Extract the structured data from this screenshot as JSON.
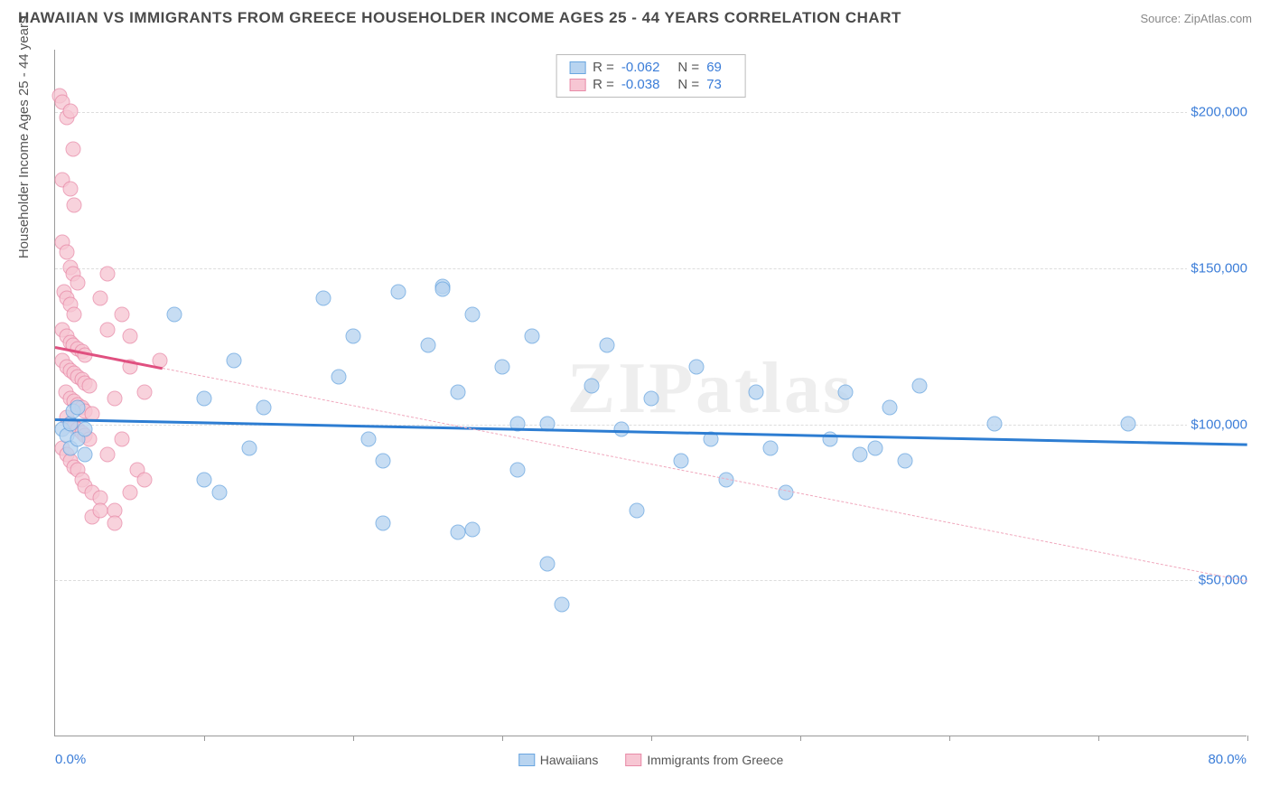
{
  "header": {
    "title": "HAWAIIAN VS IMMIGRANTS FROM GREECE HOUSEHOLDER INCOME AGES 25 - 44 YEARS CORRELATION CHART",
    "source": "Source: ZipAtlas.com"
  },
  "watermark": "ZIPatlas",
  "chart": {
    "type": "scatter",
    "ylabel": "Householder Income Ages 25 - 44 years",
    "xlim": [
      0,
      80
    ],
    "ylim": [
      0,
      220000
    ],
    "x_left_label": "0.0%",
    "x_right_label": "80.0%",
    "xtick_positions": [
      0,
      10,
      20,
      30,
      40,
      50,
      60,
      70,
      80
    ],
    "yticks": [
      {
        "v": 50000,
        "label": "$50,000"
      },
      {
        "v": 100000,
        "label": "$100,000"
      },
      {
        "v": 150000,
        "label": "$150,000"
      },
      {
        "v": 200000,
        "label": "$200,000"
      }
    ],
    "background_color": "#ffffff",
    "grid_color": "#dddddd",
    "series": [
      {
        "name": "Hawaiians",
        "fill": "#b8d4f0",
        "stroke": "#6aa6e0",
        "marker_radius": 8.5,
        "trend": {
          "y_start": 102000,
          "y_end": 94000,
          "solid_frac": 0.03,
          "color_solid": "#2d7dd2",
          "color_dashed": "#2d7dd2"
        },
        "R": "-0.062",
        "N": "69",
        "points": [
          [
            0.5,
            98000
          ],
          [
            0.8,
            96000
          ],
          [
            1,
            100000
          ],
          [
            1,
            92000
          ],
          [
            1.2,
            104000
          ],
          [
            1.5,
            95000
          ],
          [
            1.5,
            105000
          ],
          [
            2,
            98000
          ],
          [
            2,
            90000
          ],
          [
            8,
            135000
          ],
          [
            10,
            108000
          ],
          [
            10,
            82000
          ],
          [
            11,
            78000
          ],
          [
            12,
            120000
          ],
          [
            13,
            92000
          ],
          [
            14,
            105000
          ],
          [
            18,
            140000
          ],
          [
            19,
            115000
          ],
          [
            20,
            128000
          ],
          [
            21,
            95000
          ],
          [
            22,
            88000
          ],
          [
            22,
            68000
          ],
          [
            23,
            142000
          ],
          [
            25,
            125000
          ],
          [
            26,
            144000
          ],
          [
            26,
            143000
          ],
          [
            27,
            110000
          ],
          [
            27,
            65000
          ],
          [
            28,
            135000
          ],
          [
            28,
            66000
          ],
          [
            30,
            118000
          ],
          [
            31,
            100000
          ],
          [
            31,
            85000
          ],
          [
            32,
            128000
          ],
          [
            33,
            100000
          ],
          [
            33,
            55000
          ],
          [
            34,
            42000
          ],
          [
            36,
            112000
          ],
          [
            37,
            125000
          ],
          [
            38,
            98000
          ],
          [
            39,
            72000
          ],
          [
            40,
            108000
          ],
          [
            42,
            88000
          ],
          [
            43,
            118000
          ],
          [
            44,
            95000
          ],
          [
            45,
            82000
          ],
          [
            47,
            110000
          ],
          [
            48,
            92000
          ],
          [
            49,
            78000
          ],
          [
            52,
            95000
          ],
          [
            53,
            110000
          ],
          [
            54,
            90000
          ],
          [
            55,
            92000
          ],
          [
            56,
            105000
          ],
          [
            57,
            88000
          ],
          [
            58,
            112000
          ],
          [
            63,
            100000
          ],
          [
            72,
            100000
          ]
        ]
      },
      {
        "name": "Immigrants from Greece",
        "fill": "#f7c6d3",
        "stroke": "#e88ba8",
        "marker_radius": 8.5,
        "trend": {
          "y_start": 125000,
          "y_end": 50000,
          "solid_frac": 0.09,
          "color_solid": "#e05080",
          "color_dashed": "#f0a8bd"
        },
        "R": "-0.038",
        "N": "73",
        "points": [
          [
            0.3,
            205000
          ],
          [
            0.5,
            203000
          ],
          [
            0.8,
            198000
          ],
          [
            1,
            200000
          ],
          [
            1.2,
            188000
          ],
          [
            0.5,
            178000
          ],
          [
            1,
            175000
          ],
          [
            1.3,
            170000
          ],
          [
            0.5,
            158000
          ],
          [
            0.8,
            155000
          ],
          [
            1,
            150000
          ],
          [
            1.2,
            148000
          ],
          [
            1.5,
            145000
          ],
          [
            0.6,
            142000
          ],
          [
            0.8,
            140000
          ],
          [
            1,
            138000
          ],
          [
            1.3,
            135000
          ],
          [
            0.5,
            130000
          ],
          [
            0.8,
            128000
          ],
          [
            1,
            126000
          ],
          [
            1.2,
            125000
          ],
          [
            1.5,
            124000
          ],
          [
            1.8,
            123000
          ],
          [
            2,
            122000
          ],
          [
            0.5,
            120000
          ],
          [
            0.8,
            118000
          ],
          [
            1,
            117000
          ],
          [
            1.3,
            116000
          ],
          [
            1.5,
            115000
          ],
          [
            1.8,
            114000
          ],
          [
            2,
            113000
          ],
          [
            2.3,
            112000
          ],
          [
            0.7,
            110000
          ],
          [
            1,
            108000
          ],
          [
            1.3,
            107000
          ],
          [
            1.5,
            106000
          ],
          [
            1.8,
            105000
          ],
          [
            2,
            104000
          ],
          [
            2.5,
            103000
          ],
          [
            0.8,
            102000
          ],
          [
            1,
            100000
          ],
          [
            1.3,
            99000
          ],
          [
            1.5,
            98000
          ],
          [
            1.8,
            97000
          ],
          [
            2,
            96000
          ],
          [
            2.3,
            95000
          ],
          [
            0.5,
            92000
          ],
          [
            0.8,
            90000
          ],
          [
            1,
            88000
          ],
          [
            1.3,
            86000
          ],
          [
            1.5,
            85000
          ],
          [
            1.8,
            82000
          ],
          [
            2,
            80000
          ],
          [
            2.5,
            78000
          ],
          [
            3,
            76000
          ],
          [
            3.5,
            90000
          ],
          [
            4,
            108000
          ],
          [
            4.5,
            95000
          ],
          [
            5,
            118000
          ],
          [
            5.5,
            85000
          ],
          [
            3,
            140000
          ],
          [
            3.5,
            130000
          ],
          [
            4,
            72000
          ],
          [
            5,
            128000
          ],
          [
            6,
            110000
          ],
          [
            7,
            120000
          ],
          [
            2.5,
            70000
          ],
          [
            3,
            72000
          ],
          [
            4,
            68000
          ],
          [
            5,
            78000
          ],
          [
            6,
            82000
          ],
          [
            3.5,
            148000
          ],
          [
            4.5,
            135000
          ]
        ]
      }
    ],
    "legend": {
      "items": [
        "Hawaiians",
        "Immigrants from Greece"
      ]
    }
  }
}
